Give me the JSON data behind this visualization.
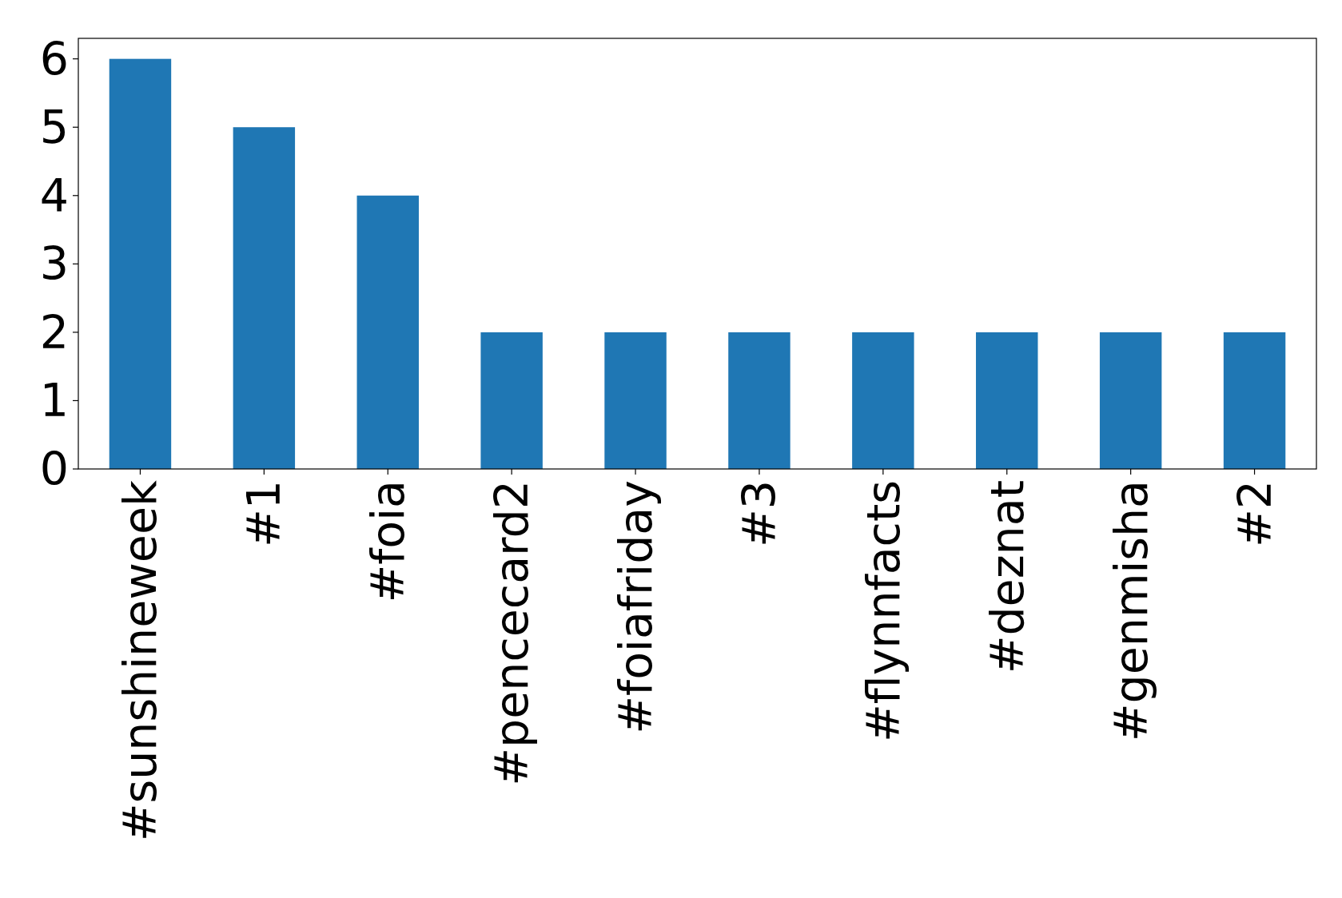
{
  "chart_data": {
    "type": "bar",
    "categories": [
      "#sunshineweek",
      "#1",
      "#foia",
      "#pencecard2",
      "#foiafriday",
      "#3",
      "#flynnfacts",
      "#deznat",
      "#genmisha",
      "#2"
    ],
    "values": [
      6,
      5,
      4,
      2,
      2,
      2,
      2,
      2,
      2,
      2
    ],
    "color": "#1f77b4",
    "ylim": [
      0,
      6.3
    ],
    "yticks": [
      0,
      1,
      2,
      3,
      4,
      5,
      6
    ],
    "grid": false
  }
}
